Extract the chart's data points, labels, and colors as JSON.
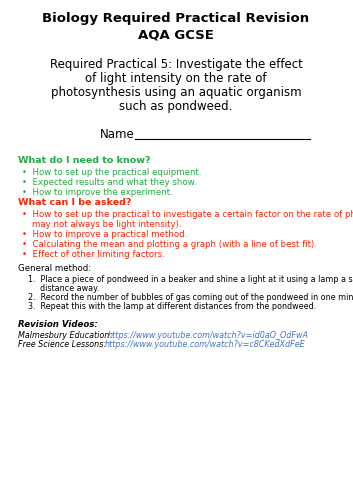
{
  "title_line1": "Biology Required Practical Revision",
  "title_line2": "AQA GCSE",
  "subtitle_lines": [
    "Required Practical 5: Investigate the effect",
    "of light intensity on the rate of",
    "photosynthesis using an aquatic organism",
    "such as pondweed."
  ],
  "name_label": "Name",
  "section1_heading": "What do I need to know?",
  "section1_bullets": [
    "How to set up the practical equipment.",
    "Expected results and what they show.",
    "How to improve the experiment."
  ],
  "section2_heading": "What can I be asked?",
  "section2_bullet1_line1": "How to set up the practical to investigate a certain factor on the rate of photosynthesis (it",
  "section2_bullet1_line2": "may not always be light intensity).",
  "section2_bullets_rest": [
    "How to improve a practical method.",
    "Calculating the mean and plotting a graph (with a line of best fit).",
    "Effect of other limiting factors."
  ],
  "general_method_heading": "General method:",
  "general_method_item1_line1": "Place a piece of pondweed in a beaker and shine a light at it using a lamp a set",
  "general_method_item1_line2": "distance away.",
  "general_method_item2": "Record the number of bubbles of gas coming out of the pondweed in one minute.",
  "general_method_item3": "Repeat this with the lamp at different distances from the pondweed.",
  "revision_heading": "Revision Videos:",
  "revision_line1_label": "Malmesbury Education: ",
  "revision_line1_url": "https://www.youtube.com/watch?v=id0aO_OdFwA",
  "revision_line2_label": "Free Science Lessons: ",
  "revision_line2_url": "https://www.youtube.com/watch?v=c8CKedXdFeE",
  "green_color": "#22aa44",
  "red_color": "#ff2200",
  "blue_color": "#4472c4",
  "black_color": "#000000",
  "bg_color": "#ffffff",
  "title_fontsize": 9.5,
  "subtitle_fontsize": 8.5,
  "name_fontsize": 8.5,
  "heading_fontsize": 6.8,
  "body_fontsize": 6.2,
  "small_fontsize": 5.8
}
